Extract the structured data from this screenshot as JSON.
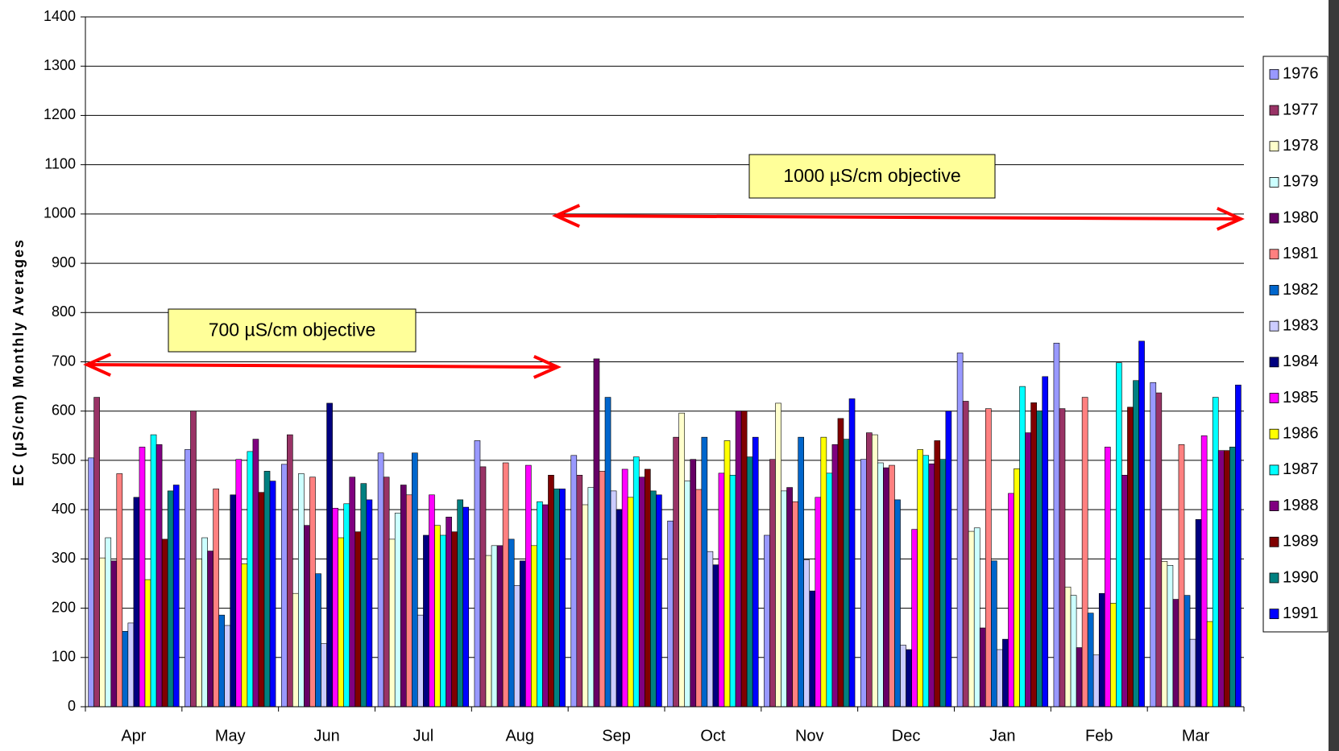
{
  "chart_data": {
    "type": "bar",
    "ylabel": "EC (µS/cm) Monthly Averages",
    "categories": [
      "Apr",
      "May",
      "Jun",
      "Jul",
      "Aug",
      "Sep",
      "Oct",
      "Nov",
      "Dec",
      "Jan",
      "Feb",
      "Mar"
    ],
    "ylim": [
      0,
      1400
    ],
    "yticks": [
      0,
      100,
      200,
      300,
      400,
      500,
      600,
      700,
      800,
      900,
      1000,
      1100,
      1200,
      1300,
      1400
    ],
    "grid": true,
    "legend": "right",
    "annotations": [
      {
        "text": "700 µS/cm objective"
      },
      {
        "text": "1000 µS/cm objective"
      }
    ],
    "series": [
      {
        "name": "1976",
        "color": "#9999ff",
        "values": [
          505,
          522,
          492,
          515,
          540,
          510,
          377,
          348,
          502,
          718,
          738,
          658
        ]
      },
      {
        "name": "1977",
        "color": "#993366",
        "values": [
          628,
          600,
          552,
          466,
          487,
          470,
          547,
          502,
          556,
          620,
          605,
          637
        ]
      },
      {
        "name": "1978",
        "color": "#ffffcc",
        "values": [
          302,
          300,
          230,
          340,
          307,
          410,
          596,
          616,
          552,
          356,
          243,
          295
        ]
      },
      {
        "name": "1979",
        "color": "#ccffff",
        "values": [
          343,
          343,
          473,
          393,
          327,
          445,
          458,
          438,
          495,
          363,
          226,
          287
        ]
      },
      {
        "name": "1980",
        "color": "#660066",
        "values": [
          296,
          316,
          368,
          450,
          327,
          706,
          502,
          445,
          485,
          160,
          120,
          218
        ]
      },
      {
        "name": "1981",
        "color": "#ff8080",
        "values": [
          473,
          442,
          466,
          430,
          495,
          478,
          441,
          416,
          490,
          605,
          628,
          532
        ]
      },
      {
        "name": "1982",
        "color": "#0066cc",
        "values": [
          153,
          186,
          270,
          515,
          340,
          628,
          547,
          547,
          420,
          296,
          190,
          226
        ]
      },
      {
        "name": "1983",
        "color": "#ccccff",
        "values": [
          170,
          165,
          128,
          186,
          246,
          438,
          315,
          298,
          125,
          116,
          105,
          137
        ]
      },
      {
        "name": "1984",
        "color": "#000080",
        "values": [
          425,
          430,
          616,
          348,
          296,
          400,
          288,
          235,
          116,
          137,
          230,
          380
        ]
      },
      {
        "name": "1985",
        "color": "#ff00ff",
        "values": [
          527,
          502,
          403,
          430,
          490,
          482,
          474,
          425,
          360,
          433,
          527,
          550
        ]
      },
      {
        "name": "1986",
        "color": "#ffff00",
        "values": [
          258,
          290,
          343,
          368,
          327,
          425,
          540,
          547,
          522,
          483,
          210,
          173
        ]
      },
      {
        "name": "1987",
        "color": "#00ffff",
        "values": [
          552,
          518,
          412,
          348,
          416,
          507,
          470,
          474,
          510,
          650,
          698,
          628
        ]
      },
      {
        "name": "1988",
        "color": "#800080",
        "values": [
          532,
          543,
          466,
          385,
          410,
          466,
          600,
          532,
          493,
          556,
          470,
          520
        ]
      },
      {
        "name": "1989",
        "color": "#800000",
        "values": [
          340,
          435,
          355,
          355,
          470,
          482,
          600,
          585,
          540,
          617,
          608,
          520
        ]
      },
      {
        "name": "1990",
        "color": "#008080",
        "values": [
          438,
          478,
          453,
          420,
          442,
          438,
          507,
          543,
          502,
          600,
          662,
          527
        ]
      },
      {
        "name": "1991",
        "color": "#0000ff",
        "values": [
          450,
          458,
          420,
          405,
          442,
          430,
          547,
          625,
          600,
          670,
          742,
          653
        ]
      }
    ]
  }
}
